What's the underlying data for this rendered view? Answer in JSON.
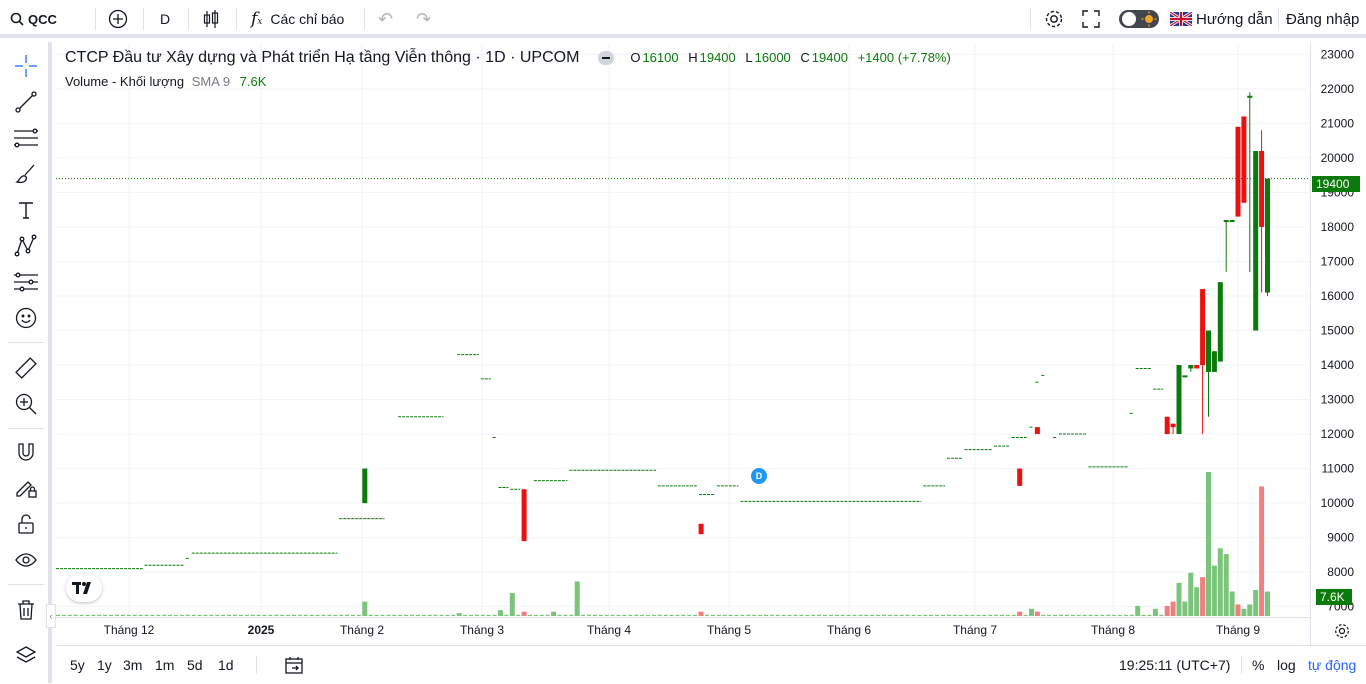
{
  "topbar": {
    "symbol": "QCC",
    "interval": "D",
    "indicators_label": "Các chỉ báo",
    "guide_label": "Hướng dẫn",
    "login_label": "Đăng nhập"
  },
  "legend": {
    "title": "CTCP Đầu tư Xây dựng và Phát triển Hạ tầng Viễn thông · 1D · UPCOM",
    "o_key": "O",
    "o_val": "16100",
    "h_key": "H",
    "h_val": "19400",
    "l_key": "L",
    "l_val": "16000",
    "c_key": "C",
    "c_val": "19400",
    "change": "+1400 (+7.78%)",
    "volume_label": "Volume - Khối lượng",
    "sma_label": "SMA 9",
    "volume_val": "7.6K"
  },
  "bottombar": {
    "ranges": [
      "5y",
      "1y",
      "3m",
      "1m",
      "5d",
      "1d"
    ],
    "time": "19:25:11 (UTC+7)",
    "percent": "%",
    "log": "log",
    "auto": "tự động"
  },
  "colors": {
    "up": "#0a7a0a",
    "down": "#ec1010",
    "vol_up": "#7cc47c",
    "vol_down": "#f08080",
    "last": "#0a7a0a",
    "dividend": "#2196f3"
  },
  "chart_data": {
    "type": "candlestick",
    "title": "CTCP Đầu tư Xây dựng và Phát triển Hạ tầng Viễn thông · 1D · UPCOM",
    "y_ticks": [
      7000,
      8000,
      9000,
      10000,
      11000,
      12000,
      13000,
      14000,
      15000,
      16000,
      17000,
      18000,
      19000,
      20000,
      21000,
      22000,
      23000
    ],
    "ylim": [
      6700,
      23300
    ],
    "x_ticks": [
      "Tháng 12",
      "2025",
      "Tháng 2",
      "Tháng 3",
      "Tháng 4",
      "Tháng 5",
      "Tháng 6",
      "Tháng 7",
      "Tháng 8",
      "Tháng 9"
    ],
    "last_price": "19400",
    "last_volume": "7.6K",
    "dividend_marker": "D",
    "flat_segments": [
      {
        "price": 8100,
        "from": 0,
        "to": 14
      },
      {
        "price": 8200,
        "from": 15,
        "to": 21
      },
      {
        "price": 8400,
        "from": 22,
        "to": 22
      },
      {
        "price": 8550,
        "from": 23,
        "to": 47
      },
      {
        "price": 9550,
        "from": 48,
        "to": 55
      },
      {
        "price": 12500,
        "from": 58,
        "to": 65
      },
      {
        "price": 14300,
        "from": 68,
        "to": 71
      },
      {
        "price": 13600,
        "from": 72,
        "to": 73
      },
      {
        "price": 11900,
        "from": 74,
        "to": 74
      },
      {
        "price": 10450,
        "from": 75,
        "to": 76
      },
      {
        "price": 10400,
        "from": 77,
        "to": 78
      },
      {
        "price": 10650,
        "from": 81,
        "to": 86
      },
      {
        "price": 10950,
        "from": 87,
        "to": 101
      },
      {
        "price": 10500,
        "from": 102,
        "to": 108
      },
      {
        "price": 10250,
        "from": 109,
        "to": 111
      },
      {
        "price": 10500,
        "from": 112,
        "to": 115
      },
      {
        "price": 10050,
        "from": 116,
        "to": 146
      },
      {
        "price": 10500,
        "from": 147,
        "to": 150
      },
      {
        "price": 11300,
        "from": 151,
        "to": 153
      },
      {
        "price": 11550,
        "from": 154,
        "to": 158
      },
      {
        "price": 11650,
        "from": 159,
        "to": 161
      },
      {
        "price": 11900,
        "from": 162,
        "to": 164
      },
      {
        "price": 12200,
        "from": 165,
        "to": 165
      },
      {
        "price": 13500,
        "from": 166,
        "to": 166
      },
      {
        "price": 13700,
        "from": 167,
        "to": 167
      },
      {
        "price": 11900,
        "from": 169,
        "to": 169
      },
      {
        "price": 12000,
        "from": 170,
        "to": 174
      },
      {
        "price": 11050,
        "from": 175,
        "to": 181
      },
      {
        "price": 12600,
        "from": 182,
        "to": 182
      },
      {
        "price": 13900,
        "from": 183,
        "to": 185
      },
      {
        "price": 13300,
        "from": 186,
        "to": 187
      }
    ],
    "candles": [
      {
        "i": 52,
        "o": 10000,
        "h": 11000,
        "l": 10000,
        "c": 11000
      },
      {
        "i": 79,
        "o": 10400,
        "h": 10400,
        "l": 8900,
        "c": 8900
      },
      {
        "i": 109,
        "o": 9400,
        "h": 9400,
        "l": 9100,
        "c": 9100
      },
      {
        "i": 163,
        "o": 11000,
        "h": 11000,
        "l": 10500,
        "c": 10500
      },
      {
        "i": 166,
        "o": 12200,
        "h": 12200,
        "l": 12000,
        "c": 12000
      },
      {
        "i": 188,
        "o": 12500,
        "h": 12500,
        "l": 12000,
        "c": 12000
      },
      {
        "i": 189,
        "o": 12300,
        "h": 12300,
        "l": 12000,
        "c": 12200
      },
      {
        "i": 190,
        "o": 12000,
        "h": 14000,
        "l": 12000,
        "c": 14000
      },
      {
        "i": 191,
        "o": 13700,
        "h": 13700,
        "l": 13700,
        "c": 13700
      },
      {
        "i": 192,
        "o": 13900,
        "h": 14000,
        "l": 13800,
        "c": 14000
      },
      {
        "i": 193,
        "o": 14000,
        "h": 14000,
        "l": 13900,
        "c": 13900
      },
      {
        "i": 194,
        "o": 16200,
        "h": 16200,
        "l": 12000,
        "c": 14000
      },
      {
        "i": 195,
        "o": 13800,
        "h": 15000,
        "l": 12500,
        "c": 15000
      },
      {
        "i": 196,
        "o": 13800,
        "h": 14400,
        "l": 13800,
        "c": 14400
      },
      {
        "i": 197,
        "o": 14100,
        "h": 16400,
        "l": 14100,
        "c": 16400
      },
      {
        "i": 198,
        "o": 18200,
        "h": 18200,
        "l": 16700,
        "c": 18200
      },
      {
        "i": 199,
        "o": 18200,
        "h": 18200,
        "l": 18200,
        "c": 18200
      },
      {
        "i": 200,
        "o": 20900,
        "h": 20900,
        "l": 18300,
        "c": 18300
      },
      {
        "i": 201,
        "o": 21200,
        "h": 21200,
        "l": 18700,
        "c": 18700
      },
      {
        "i": 202,
        "o": 21800,
        "h": 21900,
        "l": 16700,
        "c": 21800
      },
      {
        "i": 203,
        "o": 15000,
        "h": 20200,
        "l": 15000,
        "c": 20200
      },
      {
        "i": 204,
        "o": 20200,
        "h": 20800,
        "l": 16100,
        "c": 18000
      },
      {
        "i": 205,
        "o": 16100,
        "h": 19400,
        "l": 16000,
        "c": 19400
      }
    ],
    "volume_bars": [
      {
        "i": 52,
        "v": 0.1,
        "up": true
      },
      {
        "i": 68,
        "v": 0.02,
        "up": true
      },
      {
        "i": 75,
        "v": 0.04,
        "up": true
      },
      {
        "i": 77,
        "v": 0.16,
        "up": true
      },
      {
        "i": 79,
        "v": 0.03,
        "up": false
      },
      {
        "i": 84,
        "v": 0.03,
        "up": true
      },
      {
        "i": 88,
        "v": 0.24,
        "up": true
      },
      {
        "i": 109,
        "v": 0.03,
        "up": false
      },
      {
        "i": 163,
        "v": 0.03,
        "up": false
      },
      {
        "i": 165,
        "v": 0.05,
        "up": true
      },
      {
        "i": 166,
        "v": 0.03,
        "up": false
      },
      {
        "i": 183,
        "v": 0.07,
        "up": true
      },
      {
        "i": 186,
        "v": 0.05,
        "up": true
      },
      {
        "i": 188,
        "v": 0.07,
        "up": false
      },
      {
        "i": 189,
        "v": 0.1,
        "up": false
      },
      {
        "i": 190,
        "v": 0.23,
        "up": true
      },
      {
        "i": 191,
        "v": 0.1,
        "up": true
      },
      {
        "i": 192,
        "v": 0.3,
        "up": true
      },
      {
        "i": 193,
        "v": 0.2,
        "up": true
      },
      {
        "i": 194,
        "v": 0.27,
        "up": false
      },
      {
        "i": 195,
        "v": 1.0,
        "up": true
      },
      {
        "i": 196,
        "v": 0.35,
        "up": true
      },
      {
        "i": 197,
        "v": 0.47,
        "up": true
      },
      {
        "i": 198,
        "v": 0.43,
        "up": true
      },
      {
        "i": 199,
        "v": 0.17,
        "up": true
      },
      {
        "i": 200,
        "v": 0.08,
        "up": false
      },
      {
        "i": 201,
        "v": 0.05,
        "up": true
      },
      {
        "i": 202,
        "v": 0.08,
        "up": true
      },
      {
        "i": 203,
        "v": 0.18,
        "up": true
      },
      {
        "i": 204,
        "v": 0.9,
        "up": false
      },
      {
        "i": 205,
        "v": 0.17,
        "up": true
      }
    ]
  }
}
